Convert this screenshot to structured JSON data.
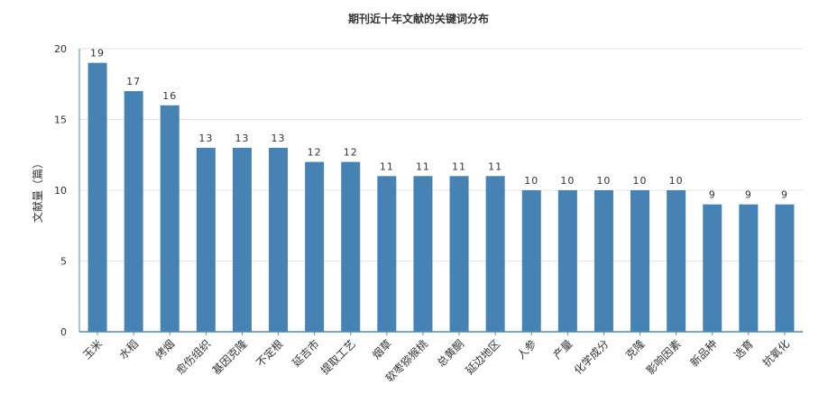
{
  "chart_data": {
    "type": "bar",
    "title": "期刊近十年文献的关键词分布",
    "xlabel": "",
    "ylabel": "文献量（篇）",
    "ylim": [
      0,
      20
    ],
    "yticks": [
      0,
      5,
      10,
      15,
      20
    ],
    "grid": true,
    "legend": "none",
    "categories": [
      "玉米",
      "水稻",
      "烤烟",
      "愈伤组织",
      "基因克隆",
      "不定根",
      "延吉市",
      "提取工艺",
      "烟草",
      "软枣猕猴桃",
      "总黄酮",
      "延边地区",
      "人参",
      "产量",
      "化学成分",
      "克隆",
      "影响因素",
      "新品种",
      "选育",
      "抗氧化"
    ],
    "values": [
      19,
      17,
      16,
      13,
      13,
      13,
      12,
      12,
      11,
      11,
      11,
      11,
      10,
      10,
      10,
      10,
      10,
      9,
      9,
      9
    ],
    "colors": {
      "bar": "#4682b4",
      "axis": "#4a8db7",
      "grid": "#e3e3e3",
      "text": "#333333",
      "label_inside": "#ffffff"
    }
  }
}
